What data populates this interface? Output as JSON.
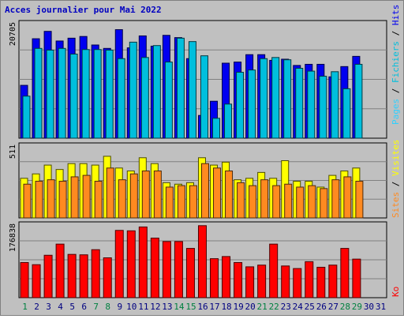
{
  "chart_data": {
    "type": "bar",
    "title": "Acces journalier pour Mai 2022",
    "categories": [
      "1",
      "2",
      "3",
      "4",
      "5",
      "6",
      "7",
      "8",
      "9",
      "10",
      "11",
      "12",
      "13",
      "14",
      "15",
      "16",
      "17",
      "18",
      "19",
      "20",
      "21",
      "22",
      "23",
      "24",
      "25",
      "26",
      "27",
      "28",
      "29",
      "30",
      "31"
    ],
    "weekend_categories": [
      "1",
      "7",
      "8",
      "14",
      "15",
      "21",
      "22",
      "28",
      "29"
    ],
    "panels": [
      {
        "max_label": "20705",
        "ylim": [
          0,
          20705
        ],
        "legend": [
          "Pages",
          "Fichiers",
          "Hits"
        ],
        "series": [
          {
            "name": "Hits",
            "color": "#0000f0",
            "values": [
              9300,
              17500,
              18800,
              17100,
              17600,
              17900,
              16400,
              15800,
              19100,
              15900,
              18000,
              16200,
              18100,
              17700,
              14000,
              4000,
              6500,
              13200,
              13400,
              14700,
              14700,
              13700,
              13900,
              12800,
              13000,
              13000,
              10800,
              12600,
              14400
            ]
          },
          {
            "name": "Fichiers",
            "color": "#00bfdd",
            "values": [
              7400,
              15800,
              15500,
              15800,
              14800,
              15600,
              15600,
              15500,
              14000,
              16900,
              14200,
              16300,
              13400,
              17600,
              17000,
              14500,
              3500,
              6000,
              11600,
              12000,
              14000,
              14200,
              13800,
              12300,
              11800,
              10900,
              11700,
              8700,
              13000
            ]
          },
          {
            "name": "Pages",
            "color": "#30d0ff",
            "values": []
          }
        ]
      },
      {
        "max_label": "511",
        "ylim": [
          0,
          511
        ],
        "legend": [
          "Sites",
          "Visites"
        ],
        "series": [
          {
            "name": "Visites",
            "color": "#ffff00",
            "values": [
              270,
              300,
              360,
              330,
              370,
              370,
              360,
              420,
              340,
              320,
              410,
              370,
              240,
              230,
              240,
              410,
              360,
              380,
              260,
              270,
              310,
              270,
              390,
              250,
              250,
              210,
              290,
              320,
              340
            ]
          },
          {
            "name": "Sites",
            "color": "#ff8a20",
            "values": [
              230,
              250,
              260,
              250,
              280,
              290,
              250,
              340,
              260,
              300,
              320,
              320,
              210,
              220,
              220,
              370,
              340,
              320,
              240,
              220,
              260,
              220,
              230,
              210,
              220,
              200,
              260,
              280,
              250
            ]
          }
        ]
      },
      {
        "max_label": "176838",
        "ylim": [
          0,
          176838
        ],
        "legend": [
          "Ko"
        ],
        "series": [
          {
            "name": "Ko",
            "color": "#ff0000",
            "values": [
              82000,
              77000,
              99000,
              125000,
              101000,
              100000,
              112000,
              93000,
              157000,
              156000,
              165000,
              139000,
              131000,
              131000,
              115000,
              168000,
              91000,
              96000,
              82000,
              72000,
              76000,
              125000,
              74000,
              68000,
              84000,
              71000,
              76000,
              115000,
              90000
            ]
          }
        ]
      }
    ]
  }
}
